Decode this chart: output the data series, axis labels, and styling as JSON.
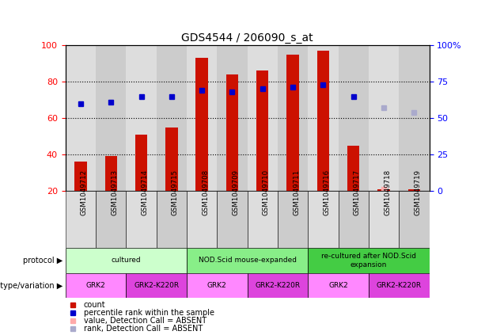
{
  "title": "GDS4544 / 206090_s_at",
  "samples": [
    "GSM1049712",
    "GSM1049713",
    "GSM1049714",
    "GSM1049715",
    "GSM1049708",
    "GSM1049709",
    "GSM1049710",
    "GSM1049711",
    "GSM1049716",
    "GSM1049717",
    "GSM1049718",
    "GSM1049719"
  ],
  "bar_values": [
    36,
    39,
    51,
    55,
    93,
    84,
    86,
    95,
    97,
    45,
    21,
    21
  ],
  "bar_color": "#cc1100",
  "percentile_values": [
    60,
    61,
    65,
    65,
    69,
    68,
    70,
    71,
    73,
    65,
    null,
    null
  ],
  "absent_value": [
    null,
    null,
    null,
    null,
    null,
    null,
    null,
    null,
    null,
    null,
    21,
    null
  ],
  "absent_rank": [
    null,
    null,
    null,
    null,
    null,
    null,
    null,
    null,
    null,
    null,
    57,
    54
  ],
  "dot_color": "#0000cc",
  "absent_dot_color": "#ffaaaa",
  "absent_rank_color": "#aaaacc",
  "ylim_left": [
    20,
    100
  ],
  "ylim_right": [
    0,
    100
  ],
  "yticks_left": [
    20,
    40,
    60,
    80,
    100
  ],
  "yticks_right": [
    0,
    25,
    50,
    75,
    100
  ],
  "ytick_labels_right": [
    "0",
    "25",
    "50",
    "75",
    "100%"
  ],
  "protocol_groups": [
    {
      "label": "cultured",
      "start": 0,
      "end": 3,
      "color": "#ccffcc"
    },
    {
      "label": "NOD.Scid mouse-expanded",
      "start": 4,
      "end": 7,
      "color": "#88ee88"
    },
    {
      "label": "re-cultured after NOD.Scid\nexpansion",
      "start": 8,
      "end": 11,
      "color": "#44cc44"
    }
  ],
  "genotype_groups": [
    {
      "label": "GRK2",
      "start": 0,
      "end": 1,
      "color": "#ff88ff"
    },
    {
      "label": "GRK2-K220R",
      "start": 2,
      "end": 3,
      "color": "#dd44dd"
    },
    {
      "label": "GRK2",
      "start": 4,
      "end": 5,
      "color": "#ff88ff"
    },
    {
      "label": "GRK2-K220R",
      "start": 6,
      "end": 7,
      "color": "#dd44dd"
    },
    {
      "label": "GRK2",
      "start": 8,
      "end": 9,
      "color": "#ff88ff"
    },
    {
      "label": "GRK2-K220R",
      "start": 10,
      "end": 11,
      "color": "#dd44dd"
    }
  ],
  "legend_items": [
    {
      "label": "count",
      "color": "#cc1100"
    },
    {
      "label": "percentile rank within the sample",
      "color": "#0000cc"
    },
    {
      "label": "value, Detection Call = ABSENT",
      "color": "#ffaaaa"
    },
    {
      "label": "rank, Detection Call = ABSENT",
      "color": "#aaaacc"
    }
  ],
  "col_colors": [
    "#dddddd",
    "#cccccc"
  ]
}
